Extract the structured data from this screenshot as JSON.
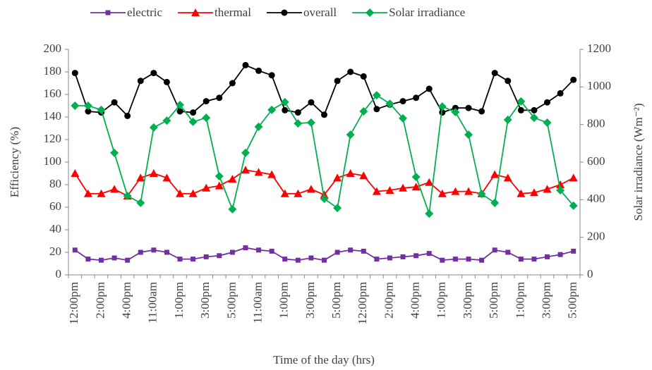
{
  "chart_data": {
    "type": "line",
    "xlabel": "Time of the day (hrs)",
    "ylabel": "Efficiency (%)",
    "y2label": "Solar irradiance (Wm⁻²)",
    "categories": [
      "12:00pm",
      null,
      "2:00pm",
      null,
      "4:00pm",
      null,
      "11:00am",
      null,
      "1:00pm",
      null,
      "3:00pm",
      null,
      "5:00pm",
      null,
      "11:00am",
      null,
      "1:00pm",
      null,
      "3:00pm",
      null,
      "5:00pm",
      null,
      "12:00pm",
      null,
      "2:00pm",
      null,
      "4:00pm",
      null,
      "1:00pm",
      null,
      "3:00pm",
      null,
      "5:00pm",
      null,
      "1:00pm",
      null,
      "3:00pm",
      null,
      "5:00pm"
    ],
    "ylim": [
      0,
      200
    ],
    "yticks": [
      0,
      20,
      40,
      60,
      80,
      100,
      120,
      140,
      160,
      180,
      200
    ],
    "y2lim": [
      0,
      1200
    ],
    "y2ticks": [
      0,
      200,
      400,
      600,
      800,
      1000,
      1200
    ],
    "legend": "top",
    "series": [
      {
        "name": "electric",
        "color": "#7030a0",
        "marker": "square",
        "values": [
          22,
          14,
          13,
          15,
          13,
          20,
          22,
          20,
          14,
          14,
          16,
          17,
          20,
          24,
          22,
          21,
          14,
          13,
          15,
          13,
          20,
          22,
          21,
          14,
          15,
          16,
          17,
          19,
          13,
          14,
          14,
          13,
          22,
          20,
          14,
          14,
          16,
          18,
          21
        ]
      },
      {
        "name": "thermal",
        "color": "#ff0000",
        "marker": "triangle",
        "values": [
          90,
          72,
          72,
          76,
          70,
          86,
          90,
          86,
          72,
          72,
          77,
          79,
          85,
          93,
          91,
          89,
          72,
          72,
          76,
          71,
          86,
          90,
          88,
          74,
          75,
          77,
          78,
          82,
          72,
          74,
          74,
          72,
          89,
          86,
          72,
          73,
          76,
          80,
          86
        ]
      },
      {
        "name": "overall",
        "color": "#000000",
        "marker": "circle",
        "values": [
          179,
          145,
          144,
          153,
          141,
          172,
          179,
          171,
          145,
          144,
          154,
          157,
          170,
          186,
          181,
          177,
          146,
          144,
          153,
          142,
          172,
          180,
          176,
          147,
          151,
          154,
          157,
          165,
          144,
          148,
          148,
          145,
          179,
          172,
          146,
          146,
          153,
          161,
          173
        ]
      },
      {
        "name": "Solar irradiance",
        "color": "#00b050",
        "marker": "diamond",
        "axis": "y2",
        "values": [
          900,
          900,
          878,
          649,
          420,
          383,
          784,
          821,
          904,
          814,
          836,
          525,
          349,
          649,
          788,
          878,
          919,
          806,
          810,
          405,
          356,
          746,
          870,
          956,
          911,
          833,
          521,
          326,
          896,
          866,
          746,
          431,
          383,
          825,
          923,
          836,
          810,
          450,
          368
        ]
      }
    ]
  }
}
